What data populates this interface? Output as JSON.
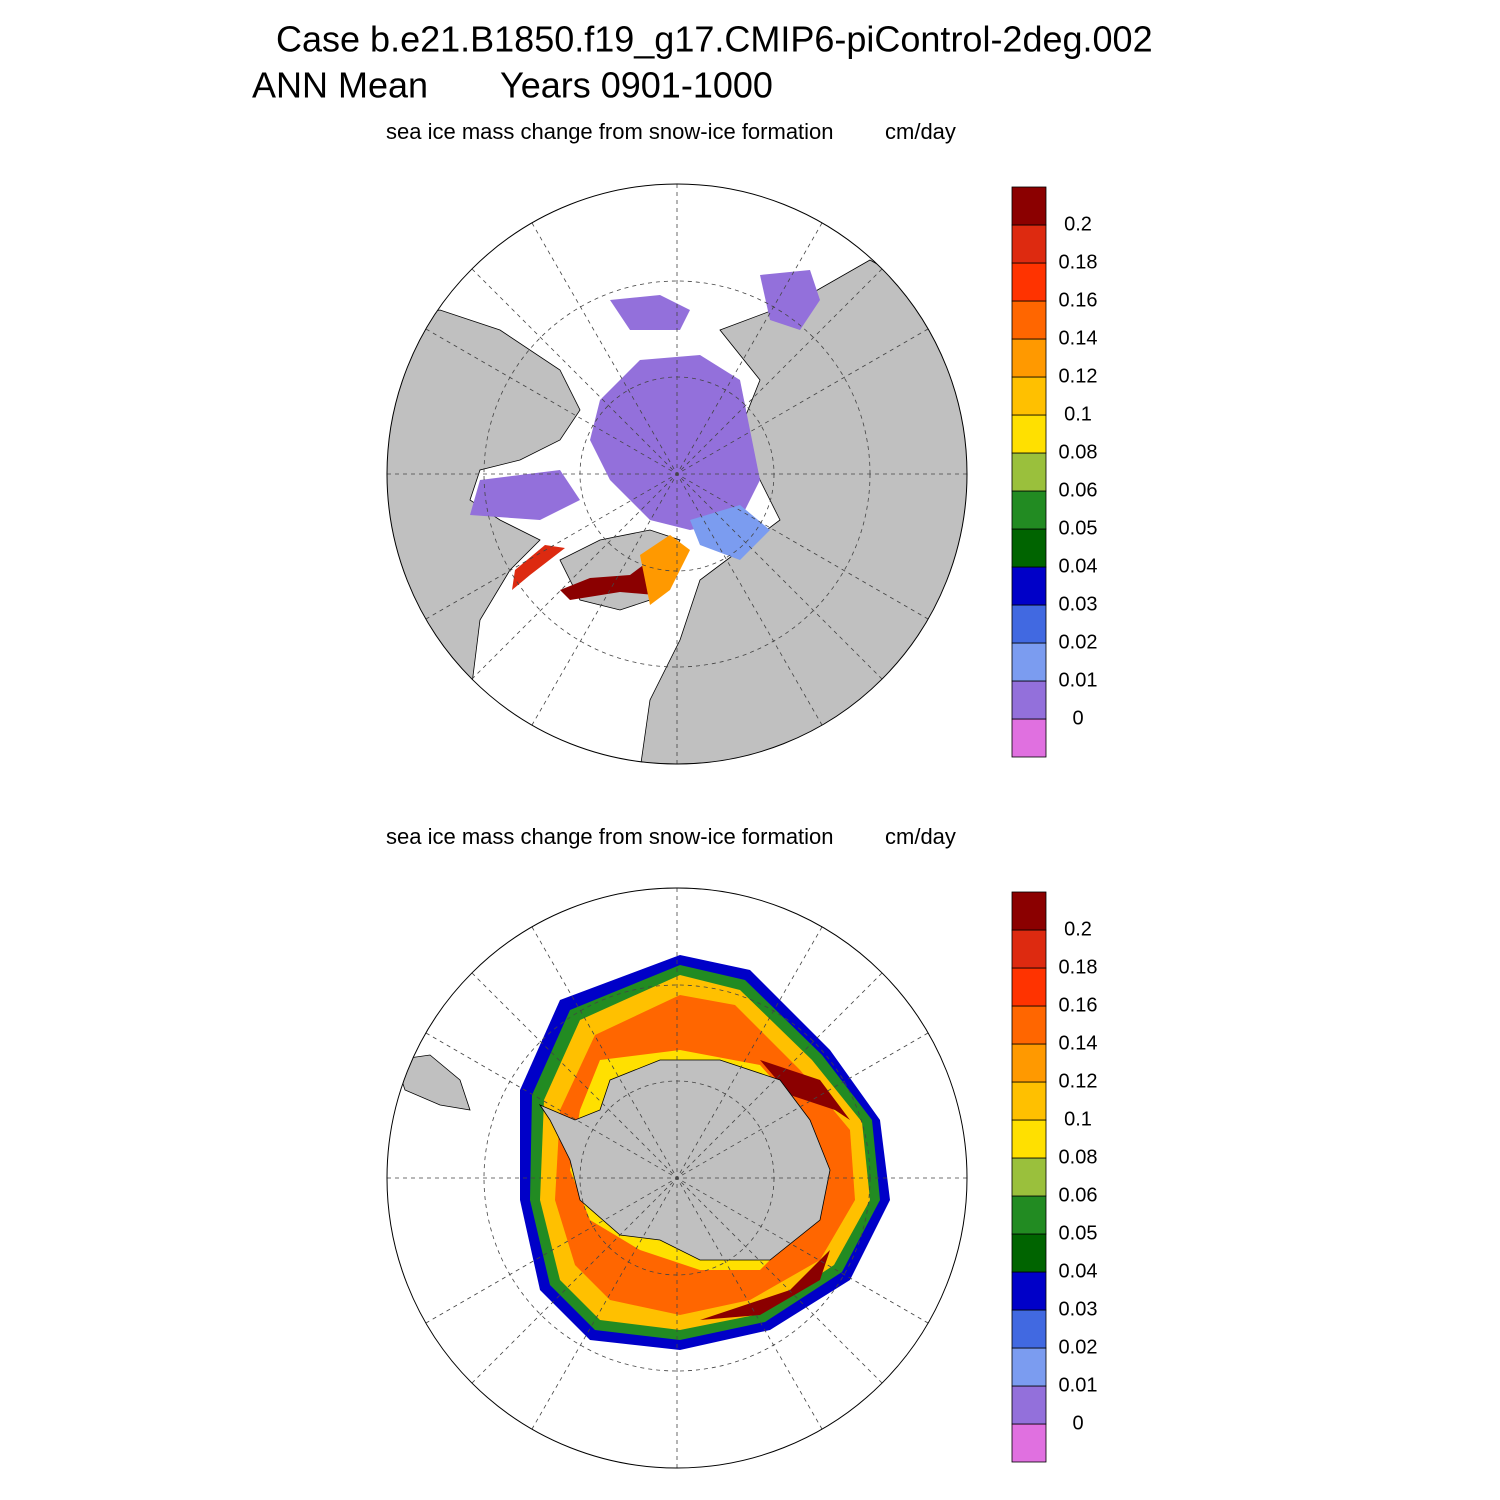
{
  "title": "Case b.e21.B1850.f19_g17.CMIP6-piControl-2deg.002",
  "subtitle": "ANN Mean",
  "years": "Years 0901-1000",
  "panels": [
    {
      "label": "sea ice mass change from snow-ice formation",
      "units": "cm/day",
      "levels": [
        0,
        0.01,
        0.02,
        0.03,
        0.04,
        0.05,
        0.06,
        0.08,
        0.1,
        0.12,
        0.14,
        0.16,
        0.18,
        0.2
      ],
      "colors": [
        "#e070e0",
        "#9370db",
        "#7b9cf0",
        "#4169e1",
        "#0000c8",
        "#006400",
        "#228b22",
        "#9ac03c",
        "#ffe000",
        "#ffc000",
        "#ff9900",
        "#ff6600",
        "#ff3300",
        "#dd2a10",
        "#8b0000"
      ]
    },
    {
      "label": "sea ice mass change from snow-ice formation",
      "units": "cm/day",
      "levels": [
        0,
        0.01,
        0.02,
        0.03,
        0.04,
        0.05,
        0.06,
        0.08,
        0.1,
        0.12,
        0.14,
        0.16,
        0.18,
        0.2
      ],
      "colors": [
        "#e070e0",
        "#9370db",
        "#7b9cf0",
        "#4169e1",
        "#0000c8",
        "#006400",
        "#228b22",
        "#9ac03c",
        "#ffe000",
        "#ffc000",
        "#ff9900",
        "#ff6600",
        "#ff3300",
        "#dd2a10",
        "#8b0000"
      ]
    }
  ]
}
